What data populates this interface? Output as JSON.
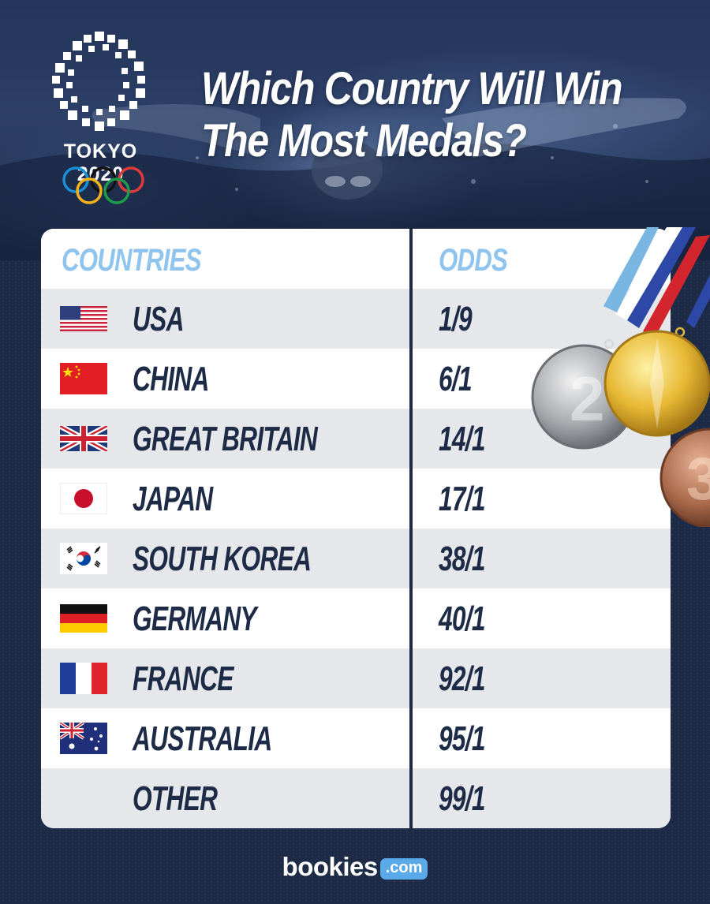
{
  "header": {
    "title_line1": "Which Country Will Win",
    "title_line2": "The Most Medals?",
    "logo_text": "TOKYO 2020"
  },
  "table": {
    "col_countries": "COUNTRIES",
    "col_odds": "ODDS",
    "rows": [
      {
        "country": "USA",
        "odds": "1/9",
        "flag": "usa-flag"
      },
      {
        "country": "CHINA",
        "odds": "6/1",
        "flag": "china-flag"
      },
      {
        "country": "GREAT BRITAIN",
        "odds": "14/1",
        "flag": "great-britain-flag"
      },
      {
        "country": "JAPAN",
        "odds": "17/1",
        "flag": "japan-flag"
      },
      {
        "country": "SOUTH KOREA",
        "odds": "38/1",
        "flag": "south-korea-flag"
      },
      {
        "country": "GERMANY",
        "odds": "40/1",
        "flag": "germany-flag"
      },
      {
        "country": "FRANCE",
        "odds": "92/1",
        "flag": "france-flag"
      },
      {
        "country": "AUSTRALIA",
        "odds": "95/1",
        "flag": "australia-flag"
      },
      {
        "country": "OTHER",
        "odds": "99/1",
        "flag": ""
      }
    ]
  },
  "brand": {
    "name": "bookies",
    "domain": ".com"
  },
  "colors": {
    "navy": "#1d2b47",
    "header_blue": "#8fc4ee",
    "row_shade": "#e6e7ea",
    "brand_blue": "#5aa9e8"
  }
}
